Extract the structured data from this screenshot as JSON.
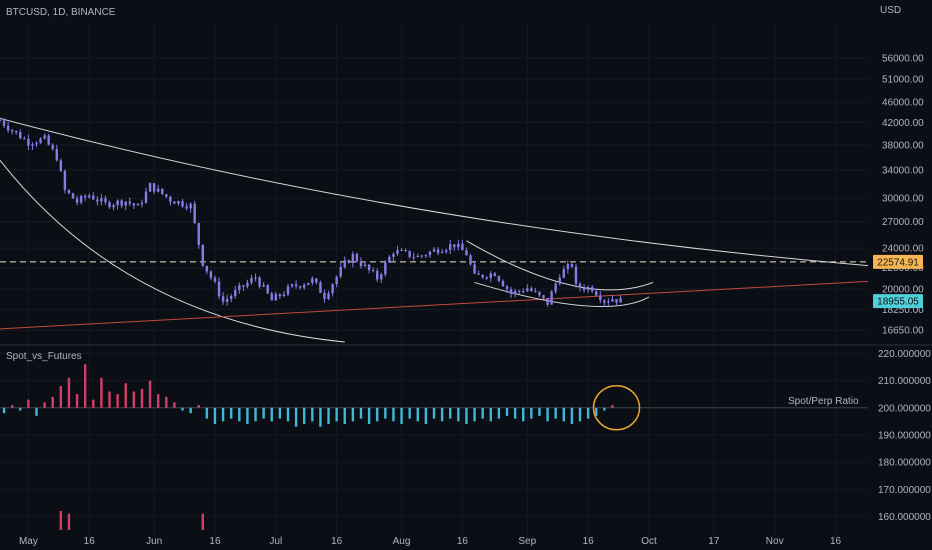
{
  "header": {
    "symbol": "BTCUSD, 1D, BINANCE",
    "currency": "USD"
  },
  "indicator": {
    "name": "Spot_vs_Futures",
    "line_label": "Spot/Perp Ratio"
  },
  "colors": {
    "background": "#0c0e15",
    "candle": "#8a7ae6",
    "axis_text": "#b2b5be",
    "hist_up": "#3fb9d6",
    "hist_down": "#d43d66",
    "trend_white": "#d8d8d8",
    "trend_red": "#c44a3a",
    "circle": "#e7a733",
    "price_tag_orange": "#f5b553",
    "price_tag_cyan": "#4fd0d8"
  },
  "chart_data": [
    {
      "type": "candlestick",
      "title": "BTCUSD, 1D, BINANCE",
      "ylabel": "USD",
      "scale": "log",
      "ylim": [
        15800,
        64000
      ],
      "x_tick_labels": [
        "May",
        "16",
        "Jun",
        "16",
        "Jul",
        "16",
        "Aug",
        "16",
        "Sep",
        "16",
        "Oct",
        "17",
        "Nov",
        "16"
      ],
      "y_tick_labels": [
        "56000.00",
        "51000.00",
        "46000.00",
        "42000.00",
        "38000.00",
        "34000.00",
        "30000.00",
        "27000.00",
        "24000.00",
        "22000.00",
        "20000.00",
        "18250.00",
        "16650.00"
      ],
      "price_tags": {
        "horizontal_level": "22574.91",
        "last_price": "18955.05"
      },
      "x_start": "2022-04-24",
      "x_end": "2022-11-24",
      "horizontal_level": 22574.91,
      "close_series": [
        {
          "date": "2022-04-24",
          "close": 42400
        },
        {
          "date": "2022-04-28",
          "close": 40000
        },
        {
          "date": "2022-05-01",
          "close": 38500
        },
        {
          "date": "2022-05-05",
          "close": 39000
        },
        {
          "date": "2022-05-08",
          "close": 36000
        },
        {
          "date": "2022-05-10",
          "close": 31000
        },
        {
          "date": "2022-05-13",
          "close": 29500
        },
        {
          "date": "2022-05-16",
          "close": 30400
        },
        {
          "date": "2022-05-20",
          "close": 29200
        },
        {
          "date": "2022-05-25",
          "close": 29600
        },
        {
          "date": "2022-05-28",
          "close": 28800
        },
        {
          "date": "2022-05-31",
          "close": 31700
        },
        {
          "date": "2022-06-05",
          "close": 29800
        },
        {
          "date": "2022-06-10",
          "close": 29000
        },
        {
          "date": "2022-06-13",
          "close": 22500
        },
        {
          "date": "2022-06-16",
          "close": 20400
        },
        {
          "date": "2022-06-18",
          "close": 18900
        },
        {
          "date": "2022-06-22",
          "close": 20000
        },
        {
          "date": "2022-06-26",
          "close": 21100
        },
        {
          "date": "2022-06-30",
          "close": 19000
        },
        {
          "date": "2022-07-05",
          "close": 20200
        },
        {
          "date": "2022-07-10",
          "close": 20800
        },
        {
          "date": "2022-07-13",
          "close": 19400
        },
        {
          "date": "2022-07-18",
          "close": 22400
        },
        {
          "date": "2022-07-20",
          "close": 23200
        },
        {
          "date": "2022-07-26",
          "close": 21000
        },
        {
          "date": "2022-07-30",
          "close": 23700
        },
        {
          "date": "2022-08-05",
          "close": 23100
        },
        {
          "date": "2022-08-10",
          "close": 23900
        },
        {
          "date": "2022-08-14",
          "close": 24400
        },
        {
          "date": "2022-08-17",
          "close": 23400
        },
        {
          "date": "2022-08-19",
          "close": 21100
        },
        {
          "date": "2022-08-24",
          "close": 21500
        },
        {
          "date": "2022-08-28",
          "close": 19600
        },
        {
          "date": "2022-09-01",
          "close": 20100
        },
        {
          "date": "2022-09-06",
          "close": 18800
        },
        {
          "date": "2022-09-09",
          "close": 21400
        },
        {
          "date": "2022-09-12",
          "close": 22300
        },
        {
          "date": "2022-09-13",
          "close": 20200
        },
        {
          "date": "2022-09-17",
          "close": 20100
        },
        {
          "date": "2022-09-20",
          "close": 19000
        },
        {
          "date": "2022-09-22",
          "close": 19200
        },
        {
          "date": "2022-09-24",
          "close": 18955
        }
      ]
    },
    {
      "type": "bar",
      "title": "Spot_vs_Futures",
      "series_label": "Spot/Perp Ratio",
      "baseline": 200,
      "ylim": [
        155,
        222
      ],
      "y_tick_labels": [
        "220.000000",
        "210.000000",
        "200.000000",
        "190.000000",
        "180.000000",
        "170.000000",
        "160.000000"
      ],
      "bars": [
        {
          "date": "2022-04-25",
          "value": 198
        },
        {
          "date": "2022-04-27",
          "value": 201
        },
        {
          "date": "2022-04-29",
          "value": 199
        },
        {
          "date": "2022-05-01",
          "value": 203
        },
        {
          "date": "2022-05-03",
          "value": 197
        },
        {
          "date": "2022-05-05",
          "value": 202
        },
        {
          "date": "2022-05-07",
          "value": 204
        },
        {
          "date": "2022-05-09",
          "value": 208
        },
        {
          "date": "2022-05-11",
          "value": 211
        },
        {
          "date": "2022-05-13",
          "value": 205
        },
        {
          "date": "2022-05-15",
          "value": 216
        },
        {
          "date": "2022-05-17",
          "value": 203
        },
        {
          "date": "2022-05-19",
          "value": 211
        },
        {
          "date": "2022-05-21",
          "value": 206
        },
        {
          "date": "2022-05-23",
          "value": 205
        },
        {
          "date": "2022-05-25",
          "value": 209
        },
        {
          "date": "2022-05-27",
          "value": 206
        },
        {
          "date": "2022-05-29",
          "value": 207
        },
        {
          "date": "2022-05-31",
          "value": 210
        },
        {
          "date": "2022-06-02",
          "value": 205
        },
        {
          "date": "2022-06-04",
          "value": 204
        },
        {
          "date": "2022-06-06",
          "value": 202
        },
        {
          "date": "2022-06-08",
          "value": 199
        },
        {
          "date": "2022-06-10",
          "value": 198
        },
        {
          "date": "2022-06-12",
          "value": 201
        },
        {
          "date": "2022-06-14",
          "value": 196
        },
        {
          "date": "2022-06-16",
          "value": 194
        },
        {
          "date": "2022-06-18",
          "value": 195
        },
        {
          "date": "2022-06-20",
          "value": 196
        },
        {
          "date": "2022-06-22",
          "value": 195
        },
        {
          "date": "2022-06-24",
          "value": 194
        },
        {
          "date": "2022-06-26",
          "value": 195
        },
        {
          "date": "2022-06-28",
          "value": 196
        },
        {
          "date": "2022-06-30",
          "value": 195
        },
        {
          "date": "2022-07-02",
          "value": 196
        },
        {
          "date": "2022-07-04",
          "value": 195
        },
        {
          "date": "2022-07-06",
          "value": 193
        },
        {
          "date": "2022-07-08",
          "value": 194
        },
        {
          "date": "2022-07-10",
          "value": 195
        },
        {
          "date": "2022-07-12",
          "value": 193
        },
        {
          "date": "2022-07-14",
          "value": 194
        },
        {
          "date": "2022-07-16",
          "value": 195
        },
        {
          "date": "2022-07-18",
          "value": 194
        },
        {
          "date": "2022-07-20",
          "value": 195
        },
        {
          "date": "2022-07-22",
          "value": 196
        },
        {
          "date": "2022-07-24",
          "value": 194
        },
        {
          "date": "2022-07-26",
          "value": 195
        },
        {
          "date": "2022-07-28",
          "value": 196
        },
        {
          "date": "2022-07-30",
          "value": 195
        },
        {
          "date": "2022-08-01",
          "value": 194
        },
        {
          "date": "2022-08-03",
          "value": 196
        },
        {
          "date": "2022-08-05",
          "value": 195
        },
        {
          "date": "2022-08-07",
          "value": 194
        },
        {
          "date": "2022-08-09",
          "value": 196
        },
        {
          "date": "2022-08-11",
          "value": 195
        },
        {
          "date": "2022-08-13",
          "value": 196
        },
        {
          "date": "2022-08-15",
          "value": 195
        },
        {
          "date": "2022-08-17",
          "value": 194
        },
        {
          "date": "2022-08-19",
          "value": 195
        },
        {
          "date": "2022-08-21",
          "value": 196
        },
        {
          "date": "2022-08-23",
          "value": 195
        },
        {
          "date": "2022-08-25",
          "value": 196
        },
        {
          "date": "2022-08-27",
          "value": 197
        },
        {
          "date": "2022-08-29",
          "value": 196
        },
        {
          "date": "2022-08-31",
          "value": 195
        },
        {
          "date": "2022-09-02",
          "value": 196
        },
        {
          "date": "2022-09-04",
          "value": 197
        },
        {
          "date": "2022-09-06",
          "value": 195
        },
        {
          "date": "2022-09-08",
          "value": 196
        },
        {
          "date": "2022-09-10",
          "value": 195
        },
        {
          "date": "2022-09-12",
          "value": 194
        },
        {
          "date": "2022-09-14",
          "value": 195
        },
        {
          "date": "2022-09-16",
          "value": 196
        },
        {
          "date": "2022-09-18",
          "value": 197
        },
        {
          "date": "2022-09-20",
          "value": 199
        },
        {
          "date": "2022-09-22",
          "value": 201
        }
      ],
      "spike_bars": [
        {
          "date": "2022-05-09",
          "value": 162
        },
        {
          "date": "2022-05-11",
          "value": 161
        },
        {
          "date": "2022-06-13",
          "value": 161
        }
      ],
      "annotation": {
        "type": "circle",
        "center_date": "2022-09-23",
        "center_value": 200
      }
    }
  ]
}
